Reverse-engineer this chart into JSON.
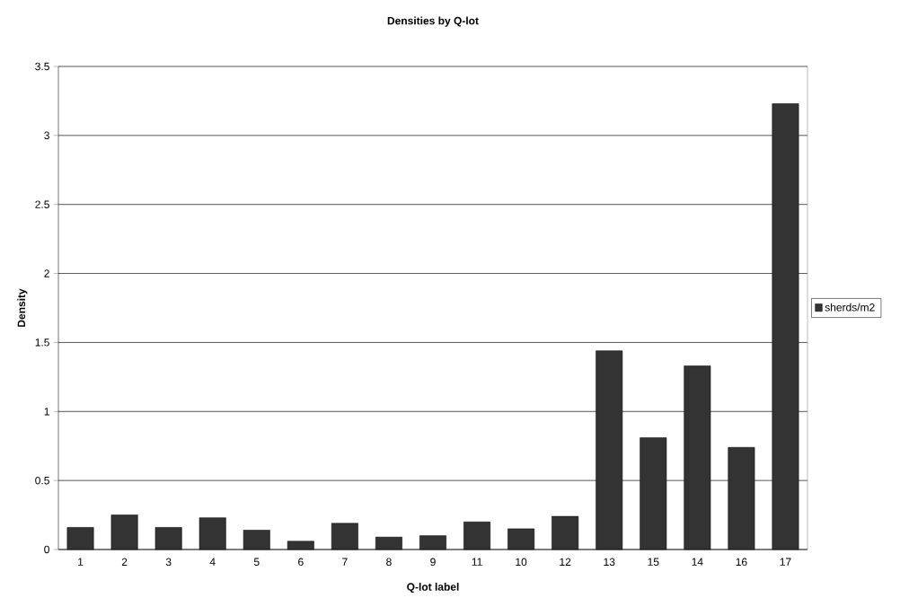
{
  "chart_data": {
    "type": "bar",
    "title": "Densities by Q-lot",
    "xlabel": "Q-lot label",
    "ylabel": "Density",
    "categories": [
      "1",
      "2",
      "3",
      "4",
      "5",
      "6",
      "7",
      "8",
      "9",
      "11",
      "10",
      "12",
      "13",
      "15",
      "14",
      "16",
      "17"
    ],
    "series": [
      {
        "name": "sherds/m2",
        "color": "#333333",
        "values": [
          0.16,
          0.25,
          0.16,
          0.23,
          0.14,
          0.06,
          0.19,
          0.09,
          0.1,
          0.2,
          0.15,
          0.24,
          1.44,
          0.81,
          1.33,
          0.74,
          3.23
        ]
      }
    ],
    "ylim": [
      0,
      3.5
    ],
    "yticks": [
      0,
      0.5,
      1,
      1.5,
      2,
      2.5,
      3,
      3.5
    ],
    "grid": "y",
    "legend": "right"
  }
}
